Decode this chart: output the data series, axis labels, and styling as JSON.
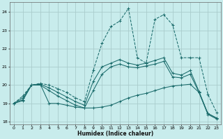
{
  "xlabel": "Humidex (Indice chaleur)",
  "bg_color": "#c8ecec",
  "grid_color": "#aacccc",
  "line_color": "#1a6b6b",
  "xlim": [
    -0.5,
    23.5
  ],
  "ylim": [
    17.85,
    24.55
  ],
  "yticks": [
    18,
    19,
    20,
    21,
    22,
    23,
    24
  ],
  "xticks": [
    0,
    1,
    2,
    3,
    4,
    5,
    6,
    7,
    8,
    9,
    10,
    11,
    12,
    13,
    14,
    15,
    16,
    17,
    18,
    19,
    20,
    21,
    22,
    23
  ],
  "curves": [
    {
      "x": [
        0,
        1,
        2,
        3,
        4,
        5,
        6,
        7,
        8,
        9,
        10,
        11,
        12,
        13,
        14,
        15,
        16,
        17,
        18,
        19,
        20,
        21,
        22,
        23
      ],
      "y": [
        19.0,
        19.4,
        20.0,
        20.1,
        20.0,
        19.8,
        19.6,
        19.3,
        19.1,
        20.8,
        22.3,
        23.2,
        23.5,
        24.2,
        21.5,
        21.2,
        23.6,
        23.85,
        23.3,
        21.5,
        21.5,
        21.5,
        19.5,
        18.5
      ],
      "dashed": true
    },
    {
      "x": [
        0,
        1,
        2,
        3,
        4,
        5,
        6,
        7,
        8,
        9,
        10,
        11,
        12,
        13,
        14,
        15,
        16,
        17,
        18,
        19,
        20,
        21,
        22,
        23
      ],
      "y": [
        19.0,
        19.3,
        20.0,
        20.05,
        19.85,
        19.6,
        19.35,
        19.1,
        18.9,
        20.2,
        21.0,
        21.2,
        21.4,
        21.2,
        21.1,
        21.2,
        21.35,
        21.5,
        20.65,
        20.55,
        20.8,
        19.65,
        18.45,
        18.2
      ],
      "dashed": false
    },
    {
      "x": [
        0,
        1,
        2,
        3,
        4,
        5,
        6,
        7,
        8,
        9,
        10,
        11,
        12,
        13,
        14,
        15,
        16,
        17,
        18,
        19,
        20,
        21,
        22,
        23
      ],
      "y": [
        19.0,
        19.2,
        20.0,
        20.0,
        19.7,
        19.4,
        19.15,
        18.9,
        18.75,
        19.7,
        20.6,
        21.0,
        21.15,
        21.0,
        20.95,
        21.05,
        21.15,
        21.3,
        20.45,
        20.4,
        20.6,
        19.6,
        18.4,
        18.15
      ],
      "dashed": false
    },
    {
      "x": [
        0,
        1,
        2,
        3,
        4,
        5,
        6,
        7,
        8,
        9,
        10,
        11,
        12,
        13,
        14,
        15,
        16,
        17,
        18,
        19,
        20,
        21,
        22,
        23
      ],
      "y": [
        19.0,
        19.15,
        20.0,
        20.05,
        19.0,
        19.0,
        18.9,
        18.8,
        18.75,
        18.75,
        18.8,
        18.9,
        19.1,
        19.3,
        19.45,
        19.55,
        19.7,
        19.85,
        19.95,
        20.0,
        20.05,
        19.6,
        18.45,
        18.2
      ],
      "dashed": false
    }
  ]
}
